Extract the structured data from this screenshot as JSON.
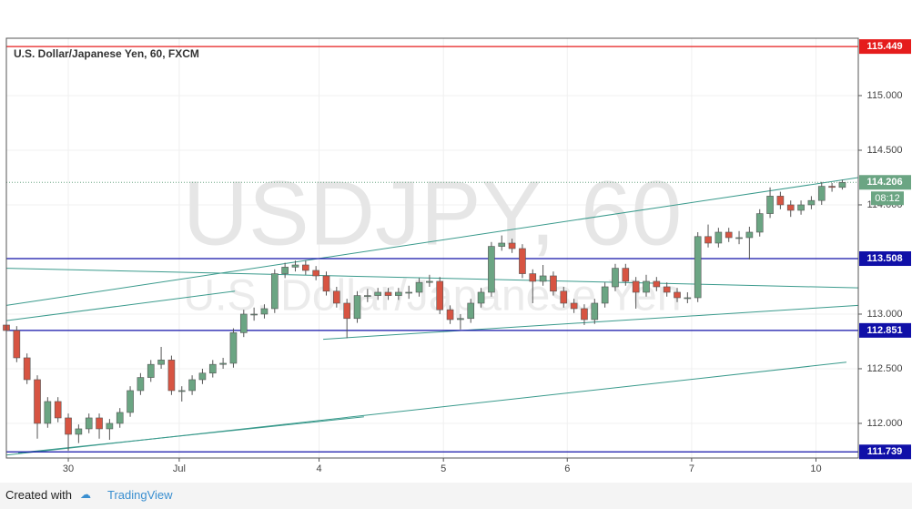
{
  "chart_data": {
    "type": "candlestick",
    "title": "U.S. Dollar/Japanese Yen, 60, FXCM",
    "watermark": "USDJPY, 60",
    "watermark_sub": "U.S. Dollar/Japanese Yen",
    "x": [
      0,
      2,
      4,
      6,
      8,
      10,
      12,
      14,
      16,
      18,
      20,
      22,
      24,
      26,
      28,
      30,
      32,
      34,
      36,
      38,
      40,
      42,
      44,
      46,
      48,
      50,
      52,
      54,
      56,
      58,
      60,
      62,
      64,
      66,
      68,
      70,
      72,
      74,
      76,
      78,
      80,
      82,
      84,
      86,
      88,
      90,
      92,
      94,
      96,
      98,
      100,
      102,
      104,
      106,
      108,
      110,
      112,
      114,
      116,
      118,
      120,
      122,
      124,
      126,
      128,
      130,
      132,
      134,
      136,
      138,
      140,
      142,
      144,
      146,
      148,
      150,
      152,
      154,
      156,
      158,
      160,
      162
    ],
    "open": [
      112.9,
      112.85,
      112.6,
      112.4,
      112.0,
      112.2,
      112.05,
      111.9,
      111.95,
      112.05,
      111.95,
      112.0,
      112.1,
      112.3,
      112.42,
      112.54,
      112.58,
      112.3,
      112.3,
      112.4,
      112.46,
      112.54,
      112.55,
      112.83,
      113.0,
      113.0,
      113.05,
      113.37,
      113.43,
      113.45,
      113.4,
      113.35,
      113.21,
      113.1,
      112.96,
      113.17,
      113.17,
      113.2,
      113.17,
      113.2,
      113.2,
      113.29,
      113.3,
      113.04,
      112.95,
      112.96,
      113.1,
      113.2,
      113.62,
      113.65,
      113.6,
      113.37,
      113.3,
      113.35,
      113.21,
      113.1,
      113.05,
      112.95,
      113.1,
      113.25,
      113.42,
      113.3,
      113.2,
      113.3,
      113.25,
      113.2,
      113.15,
      113.15,
      113.71,
      113.65,
      113.75,
      113.7,
      113.7,
      113.75,
      113.92,
      114.08,
      114.0,
      113.95,
      114.0,
      114.04,
      114.17,
      114.16
    ],
    "high": [
      112.94,
      112.89,
      112.64,
      112.44,
      112.24,
      112.24,
      112.09,
      111.99,
      112.09,
      112.09,
      112.04,
      112.14,
      112.34,
      112.46,
      112.58,
      112.7,
      112.62,
      112.34,
      112.44,
      112.5,
      112.58,
      112.6,
      112.87,
      113.04,
      113.06,
      113.09,
      113.41,
      113.47,
      113.49,
      113.49,
      113.44,
      113.39,
      113.25,
      113.14,
      113.21,
      113.23,
      113.24,
      113.24,
      113.24,
      113.26,
      113.33,
      113.36,
      113.34,
      113.08,
      113.0,
      113.14,
      113.24,
      113.66,
      113.72,
      113.69,
      113.64,
      113.41,
      113.45,
      113.39,
      113.25,
      113.14,
      113.09,
      113.14,
      113.29,
      113.46,
      113.46,
      113.34,
      113.36,
      113.34,
      113.29,
      113.24,
      113.2,
      113.75,
      113.82,
      113.79,
      113.79,
      113.76,
      113.8,
      113.96,
      114.16,
      114.12,
      114.04,
      114.04,
      114.08,
      114.21,
      114.2,
      114.23
    ],
    "low": [
      112.8,
      112.56,
      112.36,
      111.86,
      111.96,
      112.01,
      111.75,
      111.82,
      111.91,
      111.86,
      111.85,
      111.96,
      112.06,
      112.26,
      112.38,
      112.5,
      112.26,
      112.2,
      112.26,
      112.36,
      112.42,
      112.5,
      112.51,
      112.79,
      112.94,
      112.96,
      113.01,
      113.33,
      113.39,
      113.36,
      113.31,
      113.17,
      113.06,
      112.78,
      112.92,
      113.11,
      113.13,
      113.13,
      113.13,
      113.14,
      113.16,
      113.25,
      113.0,
      112.91,
      112.86,
      112.92,
      113.06,
      113.16,
      113.58,
      113.56,
      113.33,
      113.1,
      113.26,
      113.17,
      113.06,
      113.01,
      112.9,
      112.91,
      113.06,
      113.21,
      113.26,
      113.05,
      113.16,
      113.21,
      113.16,
      113.11,
      113.1,
      113.11,
      113.61,
      113.61,
      113.66,
      113.64,
      113.5,
      113.71,
      113.88,
      113.96,
      113.89,
      113.91,
      113.96,
      114.0,
      114.12,
      114.14
    ],
    "close": [
      112.85,
      112.6,
      112.4,
      112.0,
      112.2,
      112.05,
      111.9,
      111.95,
      112.05,
      111.95,
      112.0,
      112.1,
      112.3,
      112.42,
      112.54,
      112.58,
      112.3,
      112.3,
      112.4,
      112.46,
      112.54,
      112.55,
      112.83,
      113.0,
      113.0,
      113.05,
      113.37,
      113.43,
      113.45,
      113.4,
      113.35,
      113.21,
      113.1,
      112.96,
      113.17,
      113.17,
      113.2,
      113.17,
      113.2,
      113.2,
      113.29,
      113.3,
      113.04,
      112.95,
      112.96,
      113.1,
      113.2,
      113.62,
      113.65,
      113.6,
      113.37,
      113.3,
      113.35,
      113.21,
      113.1,
      113.05,
      112.95,
      113.1,
      113.25,
      113.42,
      113.3,
      113.2,
      113.3,
      113.25,
      113.2,
      113.15,
      113.15,
      113.71,
      113.65,
      113.75,
      113.7,
      113.7,
      113.75,
      113.92,
      114.08,
      114.0,
      113.95,
      114.0,
      114.04,
      114.17,
      114.16,
      114.206
    ],
    "up_color": "#6ba583",
    "down_color": "#d75442",
    "xlim": [
      0,
      165.1
    ],
    "ylim": [
      111.683,
      115.525
    ],
    "xticks": [
      {
        "value": 12,
        "label": "30"
      },
      {
        "value": 33.5,
        "label": "Jul"
      },
      {
        "value": 60.6,
        "label": "4"
      },
      {
        "value": 84.7,
        "label": "5"
      },
      {
        "value": 108.7,
        "label": "6"
      },
      {
        "value": 132.8,
        "label": "7"
      },
      {
        "value": 156.9,
        "label": "10"
      }
    ],
    "yticks": [
      {
        "value": 115,
        "label": "115.000"
      },
      {
        "value": 114.5,
        "label": "114.500"
      },
      {
        "value": 114,
        "label": "114.000"
      },
      {
        "value": 113,
        "label": "113.000"
      },
      {
        "value": 112.5,
        "label": "112.500"
      },
      {
        "value": 112,
        "label": "112.000"
      }
    ],
    "grid": true,
    "levels": [
      {
        "value": 115.449,
        "color": "#e51c1c"
      },
      {
        "value": 113.508,
        "color": "#1010a8"
      },
      {
        "value": 112.851,
        "color": "#1010a8"
      },
      {
        "value": 111.739,
        "color": "#1010a8"
      }
    ],
    "last_price": 114.206,
    "countdown": "08:12",
    "trend_color": "#3a9a8c",
    "trend_lines": [
      [
        0,
        113.08,
        165.1,
        114.25
      ],
      [
        0,
        112.94,
        44.3,
        113.21
      ],
      [
        0,
        113.42,
        165.1,
        113.24
      ],
      [
        61.4,
        112.77,
        165.1,
        113.08
      ],
      [
        0,
        111.71,
        162.8,
        112.56
      ],
      [
        2.3,
        111.73,
        69.3,
        112.06
      ]
    ]
  },
  "footer": {
    "created": "Created with",
    "brand": "TradingView"
  }
}
